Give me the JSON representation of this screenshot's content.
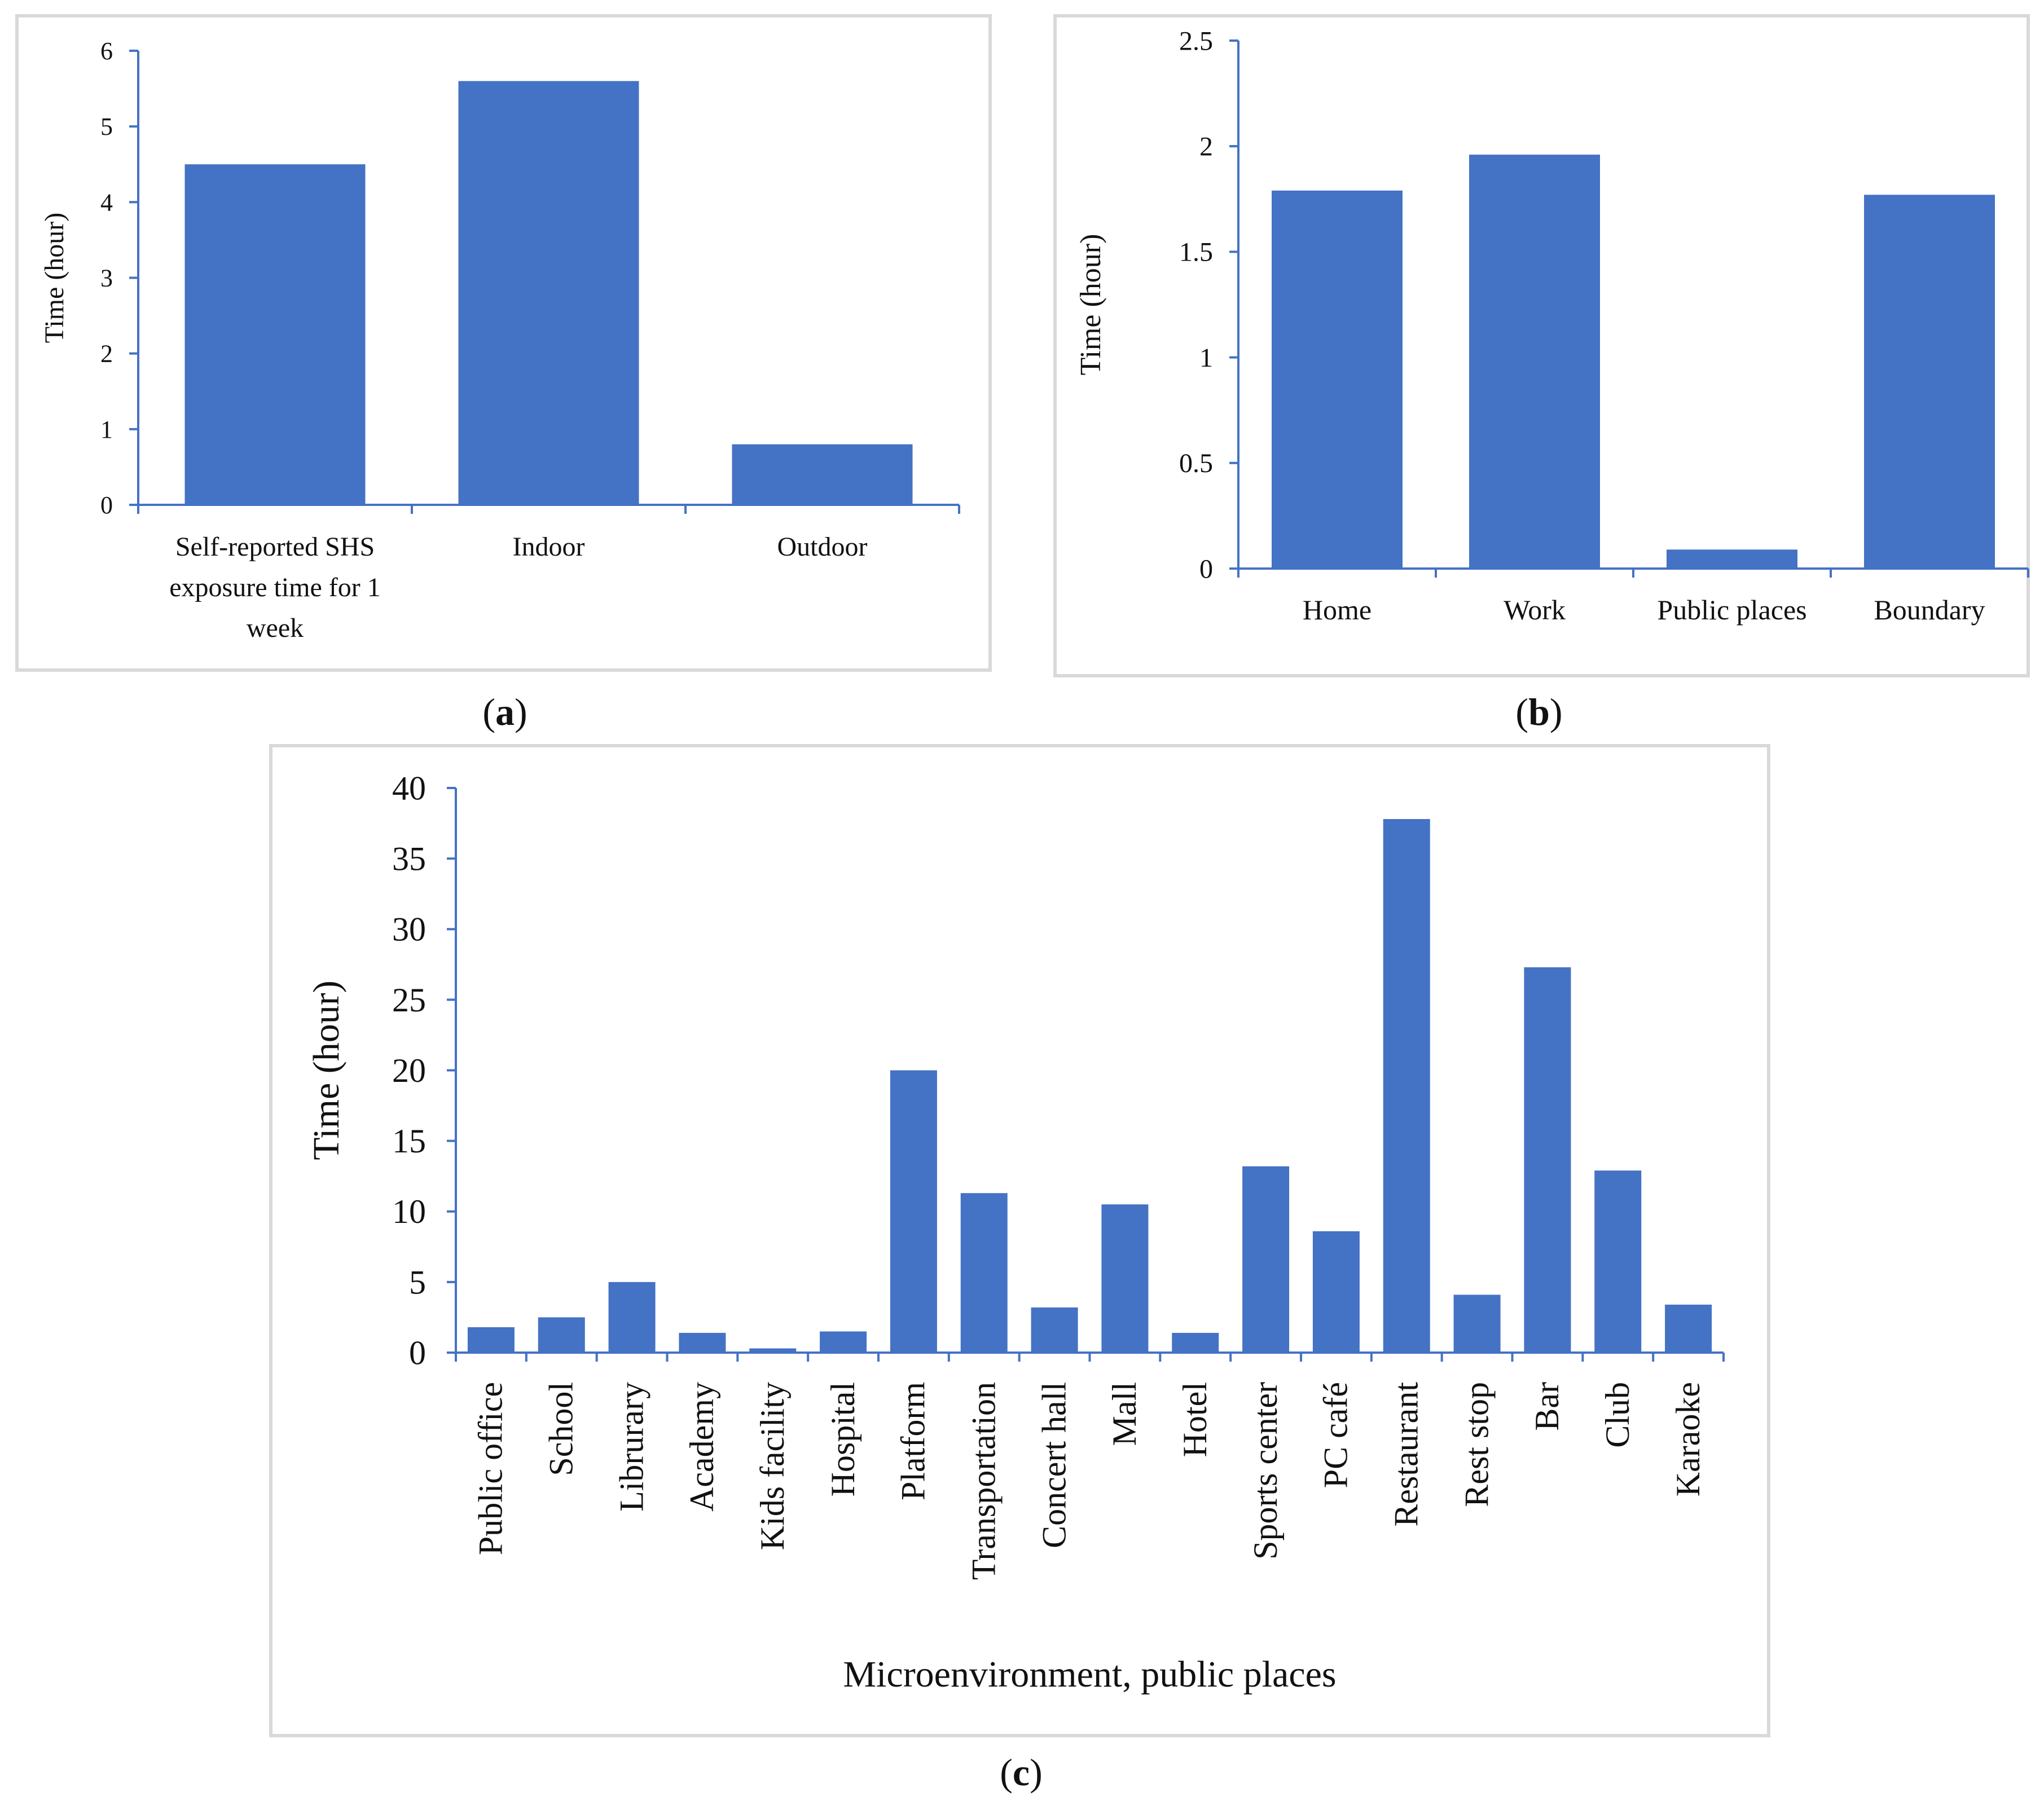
{
  "chart_data": [
    {
      "panel_label": "a",
      "type": "bar",
      "categories": [
        [
          "Self-reported SHS",
          "exposure time for 1",
          "week"
        ],
        [
          "Indoor"
        ],
        [
          "Outdoor"
        ]
      ],
      "values": [
        4.5,
        5.6,
        0.8
      ],
      "ylabel": "Time (hour)",
      "xlabel": "",
      "ylim": [
        0,
        6
      ],
      "yticks": [
        "0",
        "1",
        "2",
        "3",
        "4",
        "5",
        "6"
      ],
      "grid": false,
      "legend": "none",
      "bar_color": "#4472c4"
    },
    {
      "panel_label": "b",
      "type": "bar",
      "categories": [
        [
          "Home"
        ],
        [
          "Work"
        ],
        [
          "Public places"
        ],
        [
          "Boundary"
        ]
      ],
      "values": [
        1.79,
        1.96,
        0.09,
        1.77
      ],
      "ylabel": "Time (hour)",
      "xlabel": "",
      "ylim": [
        0,
        2.5
      ],
      "yticks": [
        "0",
        "0.5",
        "1",
        "1.5",
        "2",
        "2.5"
      ],
      "grid": false,
      "legend": "none",
      "bar_color": "#4472c4"
    },
    {
      "panel_label": "c",
      "type": "bar",
      "categories": [
        "Public office",
        "School",
        "Librurary",
        "Academy",
        "Kids facility",
        "Hospital",
        "Platform",
        "Transportation",
        "Concert hall",
        "Mall",
        "Hotel",
        "Sports center",
        "PC café",
        "Restaurant",
        "Rest stop",
        "Bar",
        "Club",
        "Karaoke"
      ],
      "values": [
        1.8,
        2.5,
        5.0,
        1.4,
        0.3,
        1.5,
        20.0,
        11.3,
        3.2,
        10.5,
        1.4,
        13.2,
        8.6,
        37.8,
        4.1,
        27.3,
        12.9,
        3.4
      ],
      "ylabel": "Time (hour)",
      "xlabel": "Microenvironment, public places",
      "ylim": [
        0,
        40
      ],
      "yticks": [
        "0",
        "5",
        "10",
        "15",
        "20",
        "25",
        "30",
        "35",
        "40"
      ],
      "grid": false,
      "legend": "none",
      "bar_color": "#4472c4"
    }
  ]
}
